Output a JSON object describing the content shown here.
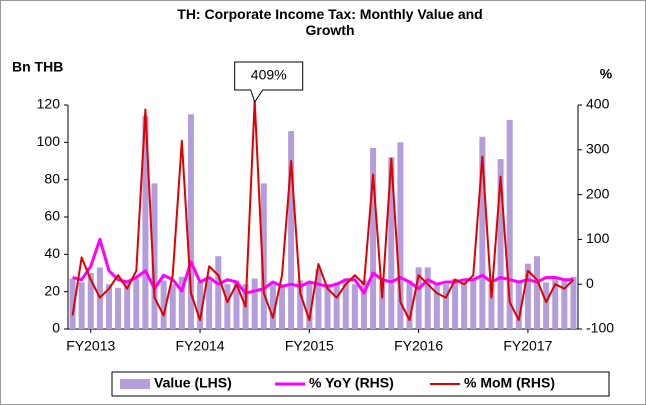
{
  "chart_data": {
    "type": "combo",
    "title": "TH: Corporate Income Tax: Monthly Value and Growth",
    "y_label": "Bn THB",
    "y2_label": "%",
    "annotation": "409%",
    "categories": [
      null,
      null,
      "FY2013",
      null,
      null,
      null,
      null,
      null,
      null,
      null,
      null,
      null,
      null,
      null,
      "FY2014",
      null,
      null,
      null,
      null,
      null,
      null,
      null,
      null,
      null,
      null,
      null,
      "FY2015",
      null,
      null,
      null,
      null,
      null,
      null,
      null,
      null,
      null,
      null,
      null,
      "FY2016",
      null,
      null,
      null,
      null,
      null,
      null,
      null,
      null,
      null,
      null,
      null,
      "FY2017",
      null,
      null,
      null,
      null,
      null
    ],
    "ylim": [
      0,
      120
    ],
    "yticks": [
      0,
      20,
      40,
      60,
      80,
      100,
      120
    ],
    "y2lim": [
      -100,
      400
    ],
    "y2ticks": [
      -100,
      0,
      100,
      200,
      300,
      400
    ],
    "legend": "bottom",
    "series": [
      {
        "name": "Value (LHS)",
        "kind": "bar",
        "color": "#b39ddb",
        "values": [
          27,
          25,
          30,
          33,
          24,
          22,
          26,
          27,
          114,
          78,
          26,
          24,
          28,
          115,
          25,
          27,
          39,
          24,
          26,
          24,
          27,
          78,
          25,
          24,
          106,
          26,
          25,
          32,
          24,
          25,
          27,
          24,
          26,
          97,
          25,
          92,
          100,
          26,
          33,
          33,
          25,
          24,
          27,
          25,
          26,
          103,
          24,
          91,
          112,
          26,
          35,
          39,
          25,
          27,
          26,
          28
        ]
      },
      {
        "name": "% YoY (RHS)",
        "kind": "line",
        "axis": "y2",
        "color": "#ff00ff",
        "values": [
          15,
          10,
          40,
          100,
          30,
          10,
          5,
          15,
          30,
          -10,
          20,
          10,
          -15,
          50,
          5,
          15,
          0,
          10,
          5,
          -20,
          -15,
          -10,
          5,
          -5,
          0,
          -5,
          5,
          0,
          -5,
          0,
          10,
          10,
          -20,
          25,
          10,
          5,
          15,
          5,
          -10,
          10,
          0,
          5,
          5,
          10,
          10,
          20,
          5,
          15,
          10,
          5,
          10,
          5,
          15,
          15,
          10,
          10
        ]
      },
      {
        "name": "% MoM (RHS)",
        "kind": "line",
        "axis": "y2",
        "color": "#e00000",
        "values": [
          -70,
          60,
          10,
          -30,
          -10,
          20,
          -10,
          30,
          390,
          -30,
          -70,
          20,
          320,
          -20,
          -80,
          40,
          20,
          -40,
          0,
          -50,
          409,
          -20,
          -75,
          20,
          275,
          -20,
          -80,
          45,
          -10,
          -30,
          0,
          20,
          0,
          245,
          -30,
          280,
          -40,
          -80,
          20,
          0,
          -20,
          -30,
          10,
          0,
          20,
          285,
          -30,
          240,
          -40,
          -80,
          30,
          10,
          -40,
          0,
          -10,
          10
        ]
      }
    ]
  }
}
